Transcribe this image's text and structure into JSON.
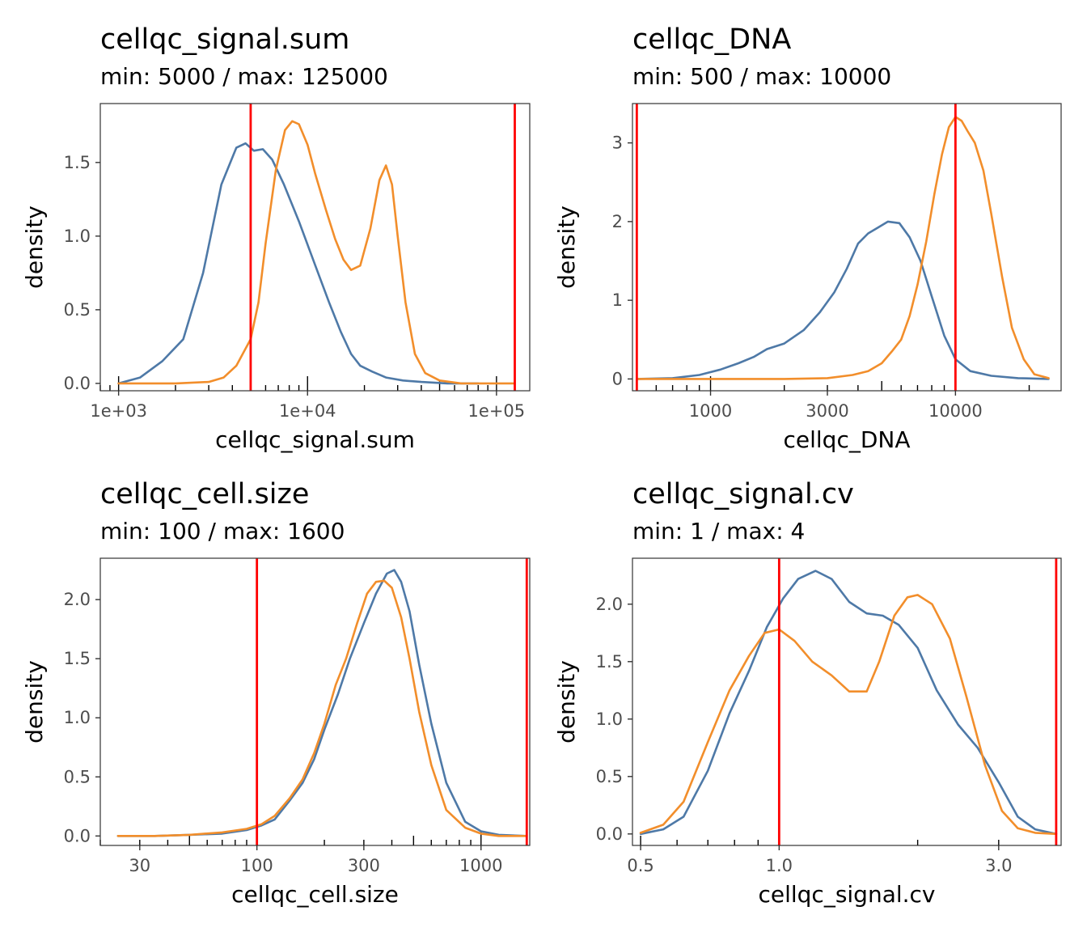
{
  "colors": {
    "series_blue": "#4e79a7",
    "series_orange": "#f28e2b",
    "threshold": "#ff0000"
  },
  "chart_data": [
    {
      "type": "line",
      "title": "cellqc_signal.sum",
      "subtitle": "min: 5000 / max: 125000",
      "xlabel": "cellqc_signal.sum",
      "ylabel": "density",
      "x_scale": "log10",
      "xlim": [
        800,
        150000
      ],
      "ylim": [
        -0.05,
        1.9
      ],
      "x_ticks": [
        1000,
        10000,
        100000
      ],
      "x_tick_labels": [
        "1e+03",
        "1e+04",
        "1e+05"
      ],
      "y_ticks": [
        0,
        0.5,
        1,
        1.5
      ],
      "y_tick_labels": [
        "0.0",
        "0.5",
        "1.0",
        "1.5"
      ],
      "thresholds": [
        5000,
        125000
      ],
      "grid": false,
      "series": [
        {
          "color": "#4e79a7",
          "x": [
            1000,
            1300,
            1700,
            2200,
            2800,
            3500,
            4200,
            4700,
            5200,
            5800,
            6500,
            7500,
            9000,
            11000,
            13000,
            15000,
            17000,
            19000,
            22000,
            26000,
            32000,
            40000,
            55000,
            80000
          ],
          "y": [
            0.0,
            0.04,
            0.15,
            0.3,
            0.75,
            1.35,
            1.6,
            1.63,
            1.58,
            1.59,
            1.52,
            1.35,
            1.1,
            0.8,
            0.55,
            0.35,
            0.2,
            0.12,
            0.08,
            0.04,
            0.02,
            0.01,
            0.0,
            0.0
          ]
        },
        {
          "color": "#f28e2b",
          "x": [
            1000,
            2000,
            3000,
            3600,
            4200,
            5000,
            5500,
            6000,
            6800,
            7600,
            8300,
            9000,
            10000,
            11000,
            12500,
            14000,
            15500,
            17000,
            19000,
            21500,
            24000,
            26000,
            28000,
            30000,
            33000,
            37000,
            42000,
            50000,
            65000,
            100000,
            125000
          ],
          "y": [
            0.0,
            0.0,
            0.01,
            0.04,
            0.12,
            0.3,
            0.55,
            0.95,
            1.45,
            1.72,
            1.78,
            1.76,
            1.62,
            1.42,
            1.18,
            0.98,
            0.84,
            0.77,
            0.8,
            1.05,
            1.38,
            1.48,
            1.35,
            1.0,
            0.55,
            0.2,
            0.07,
            0.02,
            0.0,
            0.0,
            0.0
          ]
        }
      ]
    },
    {
      "type": "line",
      "title": "cellqc_DNA",
      "subtitle": "min: 500 / max: 10000",
      "xlabel": "cellqc_DNA",
      "ylabel": "density",
      "x_scale": "log10",
      "xlim": [
        480,
        27000
      ],
      "ylim": [
        -0.15,
        3.5
      ],
      "x_ticks": [
        1000,
        3000,
        10000
      ],
      "x_tick_labels": [
        "1000",
        "3000",
        "10000"
      ],
      "y_ticks": [
        0,
        1,
        2,
        3
      ],
      "y_tick_labels": [
        "0",
        "1",
        "2",
        "3"
      ],
      "thresholds": [
        500,
        10000
      ],
      "grid": false,
      "series": [
        {
          "color": "#4e79a7",
          "x": [
            500,
            700,
            900,
            1100,
            1300,
            1500,
            1700,
            2000,
            2400,
            2800,
            3200,
            3600,
            4000,
            4400,
            4800,
            5300,
            5900,
            6500,
            7200,
            8000,
            9000,
            10000,
            11500,
            14000,
            18000,
            24000
          ],
          "y": [
            0.0,
            0.01,
            0.05,
            0.12,
            0.2,
            0.28,
            0.38,
            0.45,
            0.62,
            0.85,
            1.1,
            1.4,
            1.72,
            1.85,
            1.92,
            2.0,
            1.98,
            1.8,
            1.5,
            1.05,
            0.55,
            0.25,
            0.1,
            0.04,
            0.01,
            0.0
          ]
        },
        {
          "color": "#f28e2b",
          "x": [
            500,
            1000,
            2000,
            3000,
            3800,
            4400,
            5000,
            5500,
            6000,
            6500,
            7000,
            7600,
            8200,
            8800,
            9400,
            10000,
            10600,
            11200,
            12000,
            13000,
            14000,
            15500,
            17000,
            19000,
            21000,
            24000
          ],
          "y": [
            0.0,
            0.0,
            0.0,
            0.01,
            0.05,
            0.1,
            0.2,
            0.35,
            0.5,
            0.8,
            1.2,
            1.75,
            2.35,
            2.85,
            3.2,
            3.33,
            3.28,
            3.15,
            3.0,
            2.65,
            2.1,
            1.3,
            0.65,
            0.25,
            0.06,
            0.01
          ]
        }
      ]
    },
    {
      "type": "line",
      "title": "cellqc_cell.size",
      "subtitle": "min: 100 / max: 1600",
      "xlabel": "cellqc_cell.size",
      "ylabel": "density",
      "x_scale": "log10",
      "xlim": [
        20,
        1650
      ],
      "ylim": [
        -0.08,
        2.35
      ],
      "x_ticks": [
        30,
        100,
        300,
        1000
      ],
      "x_tick_labels": [
        "30",
        "100",
        "300",
        "1000"
      ],
      "y_ticks": [
        0,
        0.5,
        1,
        1.5,
        2
      ],
      "y_tick_labels": [
        "0.0",
        "0.5",
        "1.0",
        "1.5",
        "2.0"
      ],
      "thresholds": [
        100,
        1600
      ],
      "grid": false,
      "series": [
        {
          "color": "#4e79a7",
          "x": [
            24,
            35,
            50,
            70,
            90,
            105,
            120,
            140,
            160,
            180,
            200,
            230,
            260,
            300,
            340,
            380,
            410,
            440,
            480,
            530,
            600,
            700,
            850,
            1000,
            1200,
            1600
          ],
          "y": [
            0.0,
            0.0,
            0.01,
            0.02,
            0.05,
            0.09,
            0.14,
            0.3,
            0.45,
            0.65,
            0.9,
            1.2,
            1.5,
            1.8,
            2.05,
            2.22,
            2.25,
            2.15,
            1.9,
            1.45,
            0.95,
            0.45,
            0.12,
            0.04,
            0.01,
            0.0
          ]
        },
        {
          "color": "#f28e2b",
          "x": [
            24,
            35,
            50,
            70,
            90,
            105,
            120,
            140,
            160,
            180,
            200,
            225,
            250,
            280,
            310,
            340,
            370,
            400,
            440,
            480,
            530,
            600,
            700,
            850,
            1000,
            1200,
            1600
          ],
          "y": [
            0.0,
            0.0,
            0.01,
            0.03,
            0.06,
            0.1,
            0.17,
            0.32,
            0.48,
            0.7,
            0.95,
            1.28,
            1.5,
            1.8,
            2.05,
            2.15,
            2.16,
            2.1,
            1.85,
            1.5,
            1.05,
            0.6,
            0.22,
            0.07,
            0.02,
            0.0,
            0.0
          ]
        }
      ]
    },
    {
      "type": "line",
      "title": "cellqc_signal.cv",
      "subtitle": "min: 1 / max: 4",
      "xlabel": "cellqc_signal.cv",
      "ylabel": "density",
      "x_scale": "log10",
      "xlim": [
        0.48,
        4.1
      ],
      "ylim": [
        -0.1,
        2.4
      ],
      "x_ticks": [
        0.5,
        1,
        3
      ],
      "x_tick_labels": [
        "0.5",
        "1.0",
        "3.0"
      ],
      "y_ticks": [
        0,
        0.5,
        1,
        1.5,
        2
      ],
      "y_tick_labels": [
        "0.0",
        "0.5",
        "1.0",
        "1.5",
        "2.0"
      ],
      "thresholds": [
        1,
        4
      ],
      "grid": false,
      "series": [
        {
          "color": "#4e79a7",
          "x": [
            0.5,
            0.56,
            0.62,
            0.7,
            0.78,
            0.86,
            0.94,
            1.02,
            1.1,
            1.2,
            1.3,
            1.42,
            1.55,
            1.68,
            1.82,
            2.0,
            2.2,
            2.45,
            2.7,
            3.0,
            3.3,
            3.6,
            4.0
          ],
          "y": [
            0.0,
            0.04,
            0.15,
            0.55,
            1.05,
            1.42,
            1.8,
            2.05,
            2.22,
            2.29,
            2.22,
            2.02,
            1.92,
            1.9,
            1.82,
            1.62,
            1.25,
            0.95,
            0.75,
            0.45,
            0.15,
            0.04,
            0.0
          ]
        },
        {
          "color": "#f28e2b",
          "x": [
            0.5,
            0.56,
            0.62,
            0.7,
            0.78,
            0.86,
            0.93,
            1.0,
            1.08,
            1.18,
            1.3,
            1.42,
            1.55,
            1.65,
            1.78,
            1.9,
            2.0,
            2.15,
            2.35,
            2.55,
            2.8,
            3.05,
            3.3,
            3.6,
            4.0
          ],
          "y": [
            0.01,
            0.08,
            0.28,
            0.8,
            1.25,
            1.55,
            1.75,
            1.78,
            1.68,
            1.5,
            1.38,
            1.24,
            1.24,
            1.5,
            1.9,
            2.06,
            2.08,
            2.0,
            1.7,
            1.2,
            0.6,
            0.2,
            0.05,
            0.01,
            0.0
          ]
        }
      ]
    }
  ]
}
